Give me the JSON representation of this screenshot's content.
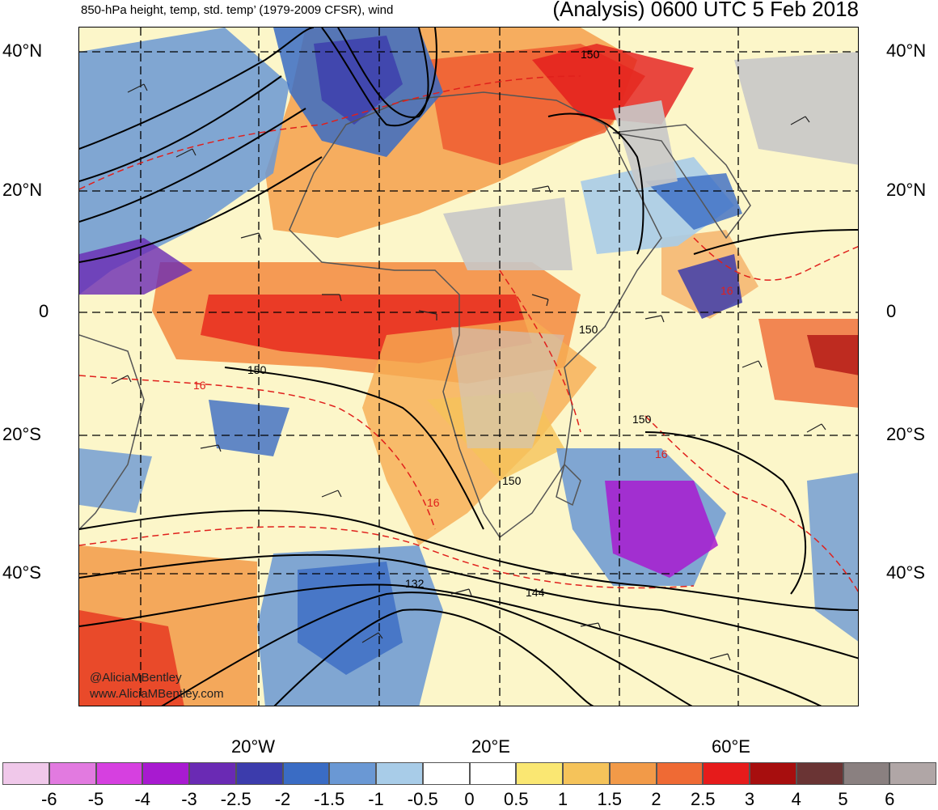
{
  "header": {
    "subtitle": "850-hPa height, temp, std. temp’ (1979-2009 CFSR), wind",
    "title": "(Analysis) 0600 UTC 5 Feb 2018"
  },
  "map": {
    "lat_labels": [
      "40°N",
      "20°N",
      "0",
      "20°S",
      "40°S"
    ],
    "lon_labels": [
      "20°W",
      "20°E",
      "60°E"
    ],
    "contour_labels": [
      "150",
      "150",
      "150",
      "150",
      "150",
      "132",
      "144"
    ],
    "temp_labels": [
      "16",
      "16",
      "16",
      "16"
    ],
    "credits": [
      "@AliciaMBentley",
      "www.AliciaMBentley.com"
    ]
  },
  "colorbar": {
    "labels": [
      "-6",
      "-5",
      "-4",
      "-3",
      "-2.5",
      "-2",
      "-1.5",
      "-1",
      "-0.5",
      "0",
      "0.5",
      "1",
      "1.5",
      "2",
      "2.5",
      "3",
      "4",
      "5",
      "6"
    ],
    "colors": [
      "#f0c8ea",
      "#e27ae0",
      "#d640e0",
      "#a81ad0",
      "#6a2ab4",
      "#3c3cac",
      "#3a6cc4",
      "#6a98d4",
      "#a8cce8",
      "#ffffff",
      "#ffffff",
      "#fae772",
      "#f5c35a",
      "#f29a48",
      "#ef6a34",
      "#e61b1b",
      "#a70e0e",
      "#6a3434",
      "#8a8080",
      "#b0a6a6"
    ]
  }
}
